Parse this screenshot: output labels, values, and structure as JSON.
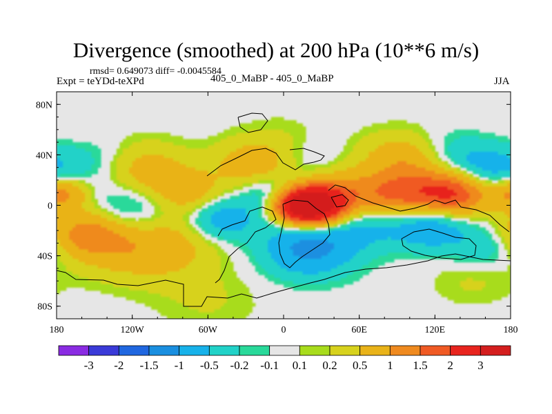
{
  "chart_data": {
    "type": "heatmap",
    "title": "Divergence (smoothed) at 200 hPa (10**6 m/s)",
    "stats": "rmsd= 0.649073 diff= -0.0045584",
    "left_label": "Expt = teYDd-teXPd",
    "center_label": "405_0_MaBP - 405_0_MaBP",
    "right_label": "JJA",
    "xlim": [
      -180,
      180
    ],
    "ylim": [
      -90,
      90
    ],
    "x_ticks": [
      {
        "value": -180,
        "label": "180"
      },
      {
        "value": -120,
        "label": "120W"
      },
      {
        "value": -60,
        "label": "60W"
      },
      {
        "value": 0,
        "label": "0"
      },
      {
        "value": 60,
        "label": "60E"
      },
      {
        "value": 120,
        "label": "120E"
      },
      {
        "value": 180,
        "label": "180"
      }
    ],
    "y_ticks": [
      {
        "value": 80,
        "label": "80N"
      },
      {
        "value": 40,
        "label": "40N"
      },
      {
        "value": 0,
        "label": "0"
      },
      {
        "value": -40,
        "label": "40S"
      },
      {
        "value": -80,
        "label": "80S"
      }
    ],
    "colorbar": {
      "labels": [
        "-3",
        "-2",
        "-1.5",
        "-1",
        "-0.5",
        "-0.2",
        "-0.1",
        "0.1",
        "0.2",
        "0.5",
        "1",
        "1.5",
        "2",
        "3"
      ],
      "colors": [
        "#8a2be2",
        "#3a3ad8",
        "#2067e0",
        "#1a8fe0",
        "#17b2ea",
        "#21d2c8",
        "#29d99a",
        "#e6e6e6",
        "#a8dc1c",
        "#d7d21d",
        "#e9b319",
        "#ef8a1f",
        "#f05a24",
        "#e8241e",
        "#d41e1e"
      ]
    },
    "features": [
      {
        "lon": 15,
        "lat": 0,
        "value": 3.2,
        "spread": 15
      },
      {
        "lon": 30,
        "lat": 0,
        "value": 2.4,
        "spread": 18
      },
      {
        "lon": 135,
        "lat": 10,
        "value": 2.2,
        "spread": 20
      },
      {
        "lon": 60,
        "lat": 12,
        "value": 1.5,
        "spread": 30
      },
      {
        "lon": 95,
        "lat": 10,
        "value": 1.3,
        "spread": 22
      },
      {
        "lon": -175,
        "lat": 10,
        "value": 1.3,
        "spread": 14
      },
      {
        "lon": -110,
        "lat": -25,
        "value": 1.4,
        "spread": 35
      },
      {
        "lon": -155,
        "lat": -22,
        "value": 1.2,
        "spread": 22
      },
      {
        "lon": 95,
        "lat": 40,
        "value": 1.1,
        "spread": 24
      },
      {
        "lon": -110,
        "lat": 30,
        "value": 1.0,
        "spread": 25
      },
      {
        "lon": -25,
        "lat": 35,
        "value": 1.0,
        "spread": 22
      },
      {
        "lon": -75,
        "lat": 10,
        "value": 0.8,
        "spread": 20
      },
      {
        "lon": -60,
        "lat": -80,
        "value": 0.3,
        "spread": 30
      },
      {
        "lon": 150,
        "lat": -60,
        "value": 0.3,
        "spread": 24
      },
      {
        "lon": -155,
        "lat": 55,
        "value": 0.3,
        "spread": 25
      },
      {
        "lon": 0,
        "lat": 55,
        "value": 0.3,
        "spread": 25
      },
      {
        "lon": -120,
        "lat": -8,
        "value": -1.3,
        "spread": 28
      },
      {
        "lon": -50,
        "lat": -10,
        "value": -1.0,
        "spread": 20
      },
      {
        "lon": 60,
        "lat": -10,
        "value": -1.1,
        "spread": 24
      },
      {
        "lon": 115,
        "lat": -15,
        "value": -1.0,
        "spread": 22
      },
      {
        "lon": 160,
        "lat": 30,
        "value": -1.0,
        "spread": 22
      },
      {
        "lon": 20,
        "lat": -35,
        "value": -1.2,
        "spread": 25
      },
      {
        "lon": 75,
        "lat": 25,
        "value": -0.6,
        "spread": 20
      },
      {
        "lon": -150,
        "lat": 40,
        "value": -0.6,
        "spread": 24
      },
      {
        "lon": 30,
        "lat": 35,
        "value": -0.5,
        "spread": 22
      },
      {
        "lon": 130,
        "lat": 45,
        "value": -0.5,
        "spread": 20
      },
      {
        "lon": -10,
        "lat": 10,
        "value": -0.6,
        "spread": 16
      },
      {
        "lon": 160,
        "lat": -35,
        "value": -0.5,
        "spread": 20
      }
    ]
  }
}
